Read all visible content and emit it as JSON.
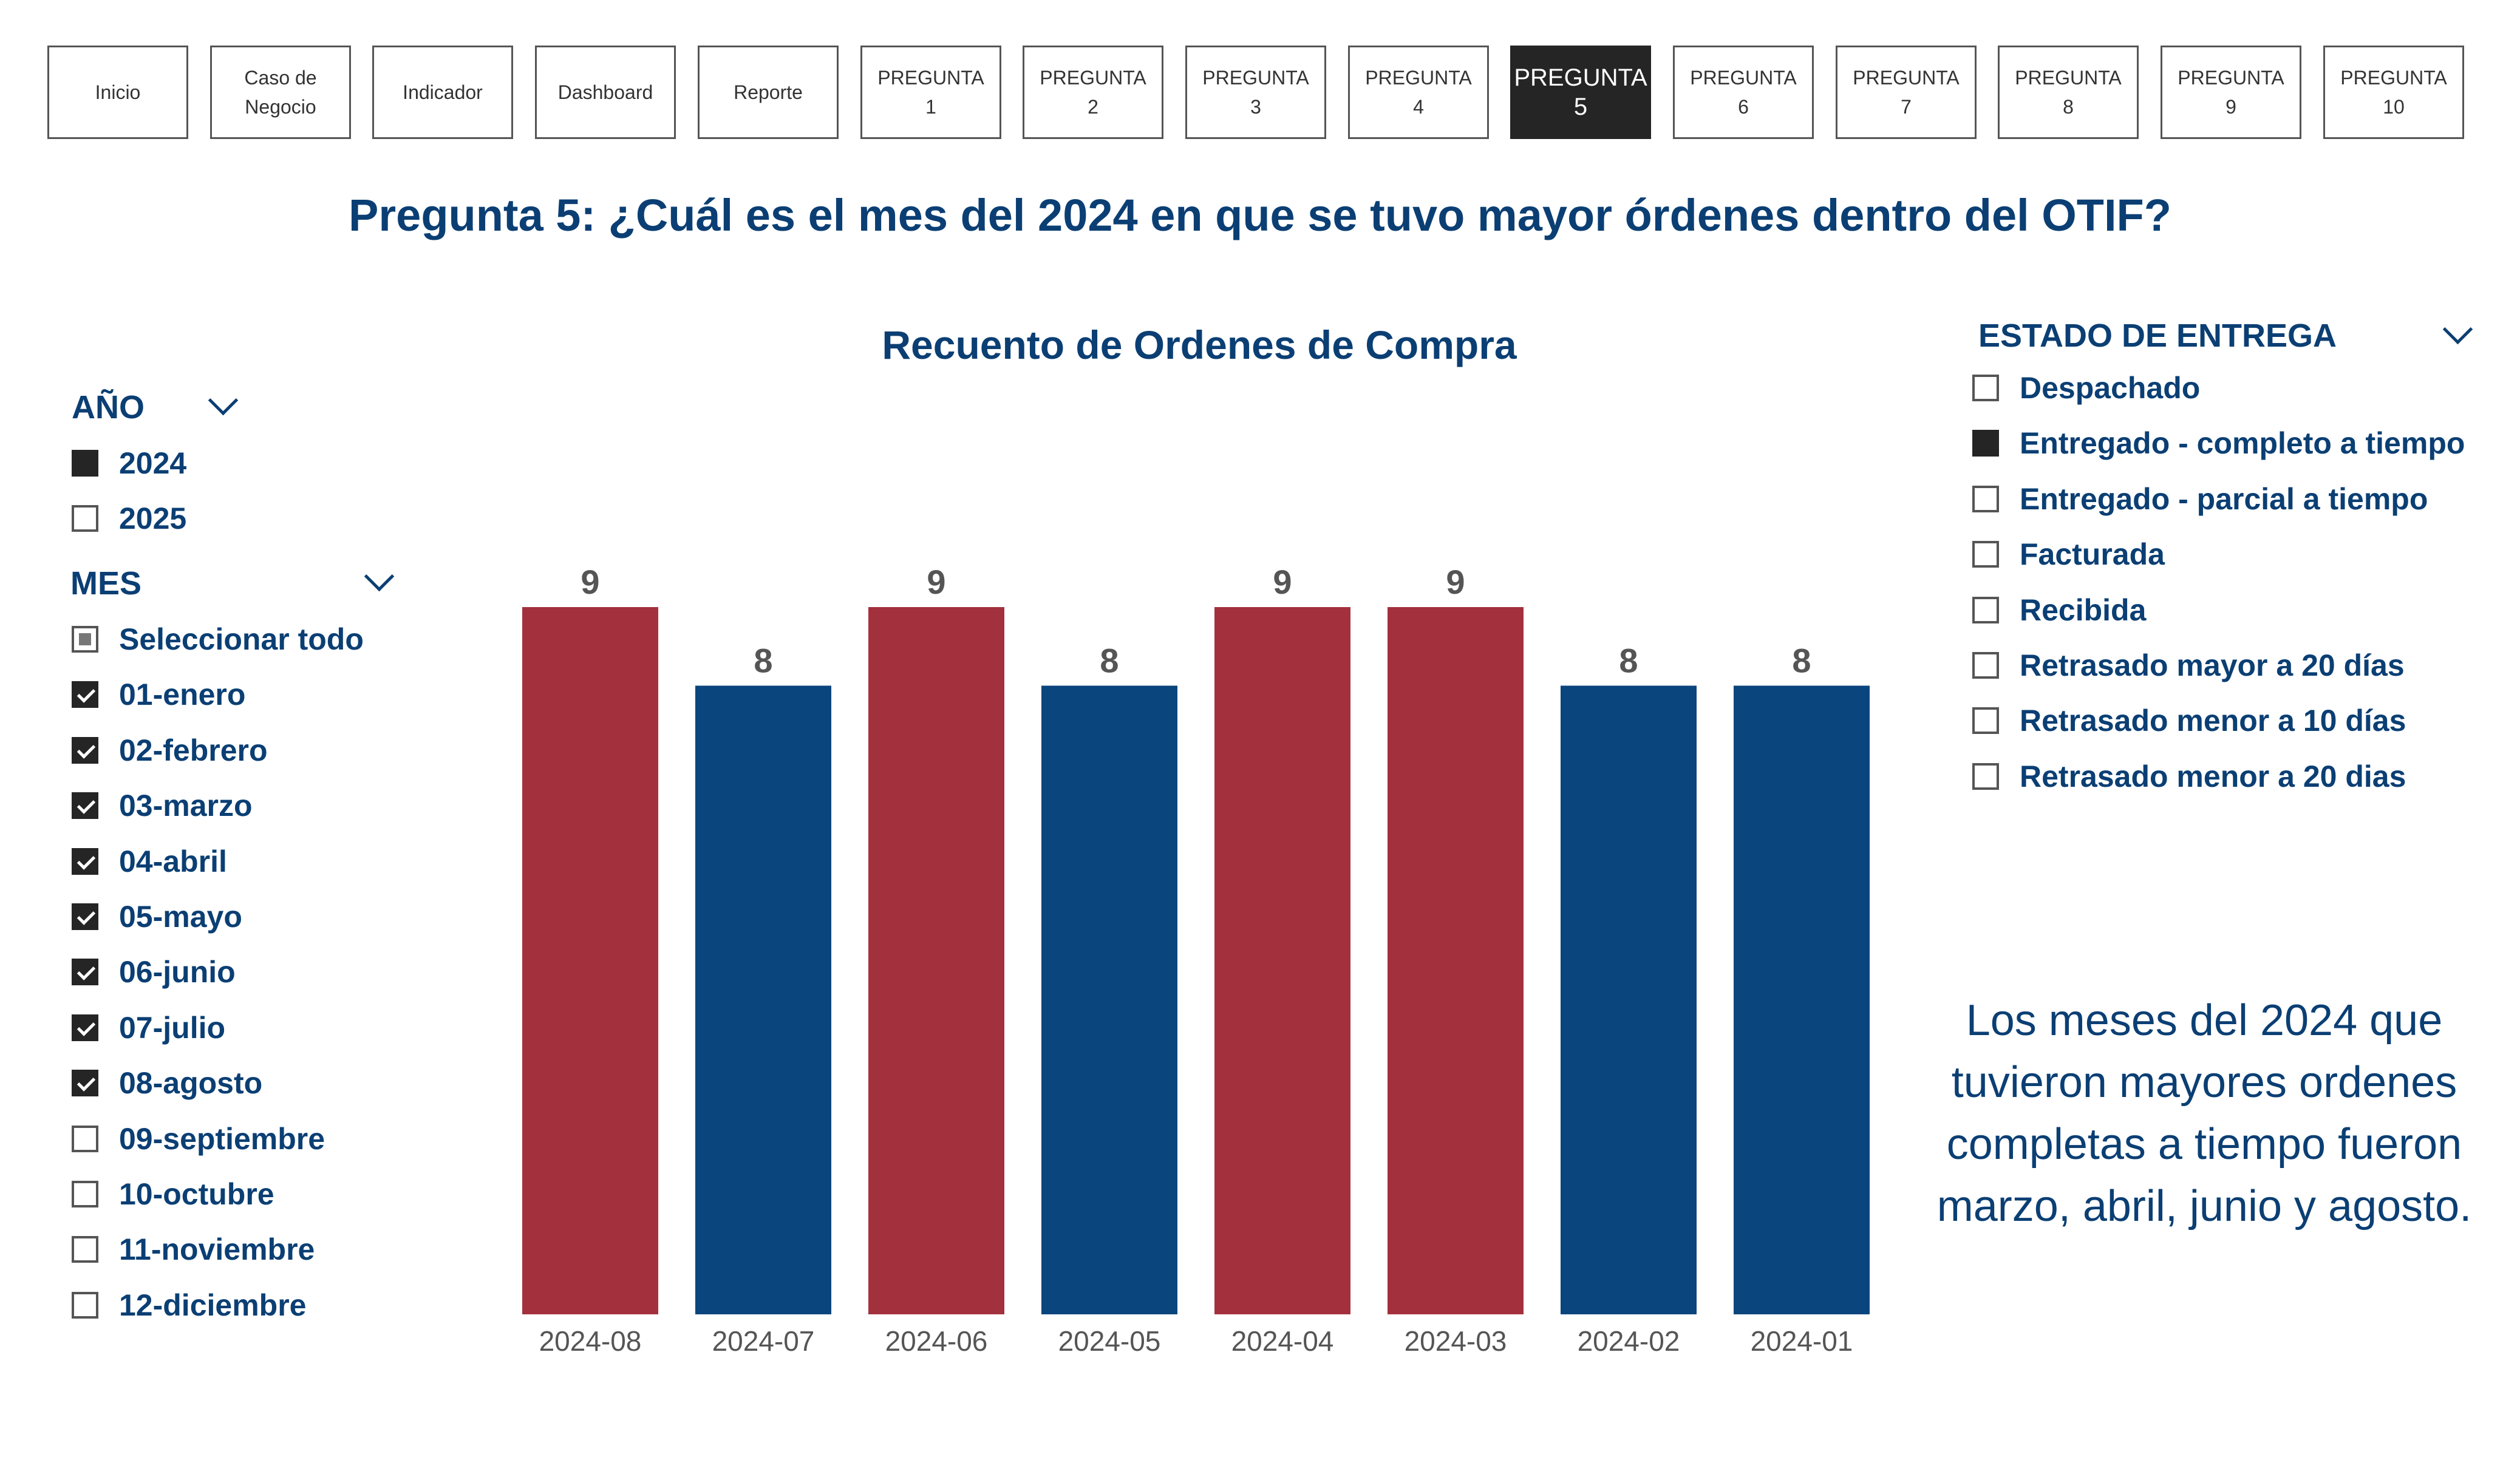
{
  "nav": {
    "buttons": [
      {
        "label": "Inicio",
        "active": false
      },
      {
        "label": "Caso de\nNegocio",
        "active": false
      },
      {
        "label": "Indicador",
        "active": false
      },
      {
        "label": "Dashboard",
        "active": false
      },
      {
        "label": "Reporte",
        "active": false
      },
      {
        "label": "PREGUNTA 1",
        "active": false
      },
      {
        "label": "PREGUNTA 2",
        "active": false
      },
      {
        "label": "PREGUNTA 3",
        "active": false
      },
      {
        "label": "PREGUNTA 4",
        "active": false
      },
      {
        "label": "PREGUNTA\n5",
        "active": true
      },
      {
        "label": "PREGUNTA 6",
        "active": false
      },
      {
        "label": "PREGUNTA 7",
        "active": false
      },
      {
        "label": "PREGUNTA 8",
        "active": false
      },
      {
        "label": "PREGUNTA 9",
        "active": false
      },
      {
        "label": "PREGUNTA 10",
        "active": false
      }
    ]
  },
  "page_title": "Pregunta 5: ¿Cuál es el mes del 2024 en que se tuvo mayor órdenes dentro del OTIF?",
  "year_slicer": {
    "header": "AÑO",
    "options": [
      {
        "label": "2024",
        "state": "filled"
      },
      {
        "label": "2025",
        "state": "empty"
      }
    ]
  },
  "month_slicer": {
    "header": "MES",
    "options": [
      {
        "label": "Seleccionar todo",
        "state": "partial"
      },
      {
        "label": "01-enero",
        "state": "checked"
      },
      {
        "label": "02-febrero",
        "state": "checked"
      },
      {
        "label": "03-marzo",
        "state": "checked"
      },
      {
        "label": "04-abril",
        "state": "checked"
      },
      {
        "label": "05-mayo",
        "state": "checked"
      },
      {
        "label": "06-junio",
        "state": "checked"
      },
      {
        "label": "07-julio",
        "state": "checked"
      },
      {
        "label": "08-agosto",
        "state": "checked"
      },
      {
        "label": "09-septiembre",
        "state": "empty"
      },
      {
        "label": "10-octubre",
        "state": "empty"
      },
      {
        "label": "11-noviembre",
        "state": "empty"
      },
      {
        "label": "12-diciembre",
        "state": "empty"
      }
    ]
  },
  "status_slicer": {
    "header": "ESTADO DE ENTREGA",
    "options": [
      {
        "label": "Despachado",
        "state": "empty"
      },
      {
        "label": "Entregado - completo a tiempo",
        "state": "filled"
      },
      {
        "label": "Entregado - parcial a tiempo",
        "state": "empty"
      },
      {
        "label": "Facturada",
        "state": "empty"
      },
      {
        "label": "Recibida",
        "state": "empty"
      },
      {
        "label": "Retrasado mayor a 20 días",
        "state": "empty"
      },
      {
        "label": "Retrasado menor a 10 días",
        "state": "empty"
      },
      {
        "label": "Retrasado menor a 20 dias",
        "state": "empty"
      }
    ]
  },
  "chart_data": {
    "type": "bar",
    "title": "Recuento de Ordenes de Compra",
    "categories": [
      "2024-08",
      "2024-07",
      "2024-06",
      "2024-05",
      "2024-04",
      "2024-03",
      "2024-02",
      "2024-01"
    ],
    "values": [
      9,
      8,
      9,
      8,
      9,
      9,
      8,
      8
    ],
    "bar_colors": [
      "#a3313d",
      "#0b457d",
      "#a3313d",
      "#0b457d",
      "#a3313d",
      "#a3313d",
      "#0b457d",
      "#0b457d"
    ],
    "ylim": [
      0,
      9
    ],
    "xlabel": "",
    "ylabel": "",
    "grid": false,
    "data_labels": true
  },
  "note": "Los meses del 2024 que tuvieron mayores ordenes completas a tiempo  fueron marzo, abril, junio y agosto.",
  "colors": {
    "accent": "#0b3f74",
    "highlight": "#a3313d",
    "bar": "#0b457d",
    "active_nav": "#252525"
  }
}
